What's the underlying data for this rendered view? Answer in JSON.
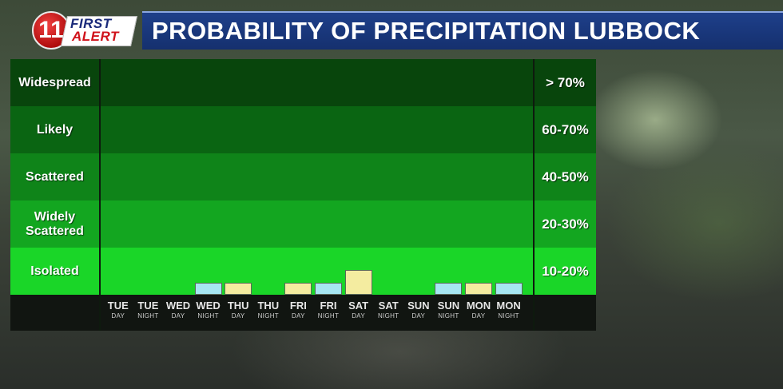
{
  "header": {
    "logo_number": "11",
    "logo_first": "FIRST",
    "logo_alert": "ALERT",
    "title": "PROBABILITY OF PRECIPITATION LUBBOCK"
  },
  "colors": {
    "band_widespread": "#08450c",
    "band_likely": "#0a6512",
    "band_scattered": "#0f8419",
    "band_widely_scattered": "#13a620",
    "band_isolated": "#1ad628",
    "bar_night": "#a6e6f2",
    "bar_day": "#f4eca0"
  },
  "chart_data": {
    "type": "bar",
    "title": "PROBABILITY OF PRECIPITATION LUBBOCK",
    "levels": [
      {
        "label": "Widespread",
        "range": "> 70%"
      },
      {
        "label": "Likely",
        "range": "60-70%"
      },
      {
        "label": "Scattered",
        "range": "40-50%"
      },
      {
        "label": "Widely Scattered",
        "range": "20-30%"
      },
      {
        "label": "Isolated",
        "range": "10-20%"
      }
    ],
    "categories": [
      {
        "day": "TUE",
        "part": "DAY"
      },
      {
        "day": "TUE",
        "part": "NIGHT"
      },
      {
        "day": "WED",
        "part": "DAY"
      },
      {
        "day": "WED",
        "part": "NIGHT"
      },
      {
        "day": "THU",
        "part": "DAY"
      },
      {
        "day": "THU",
        "part": "NIGHT"
      },
      {
        "day": "FRI",
        "part": "DAY"
      },
      {
        "day": "FRI",
        "part": "NIGHT"
      },
      {
        "day": "SAT",
        "part": "DAY"
      },
      {
        "day": "SAT",
        "part": "NIGHT"
      },
      {
        "day": "SUN",
        "part": "DAY"
      },
      {
        "day": "SUN",
        "part": "NIGHT"
      },
      {
        "day": "MON",
        "part": "DAY"
      },
      {
        "day": "MON",
        "part": "NIGHT"
      }
    ],
    "values": [
      0,
      0,
      0,
      1,
      1,
      0,
      1,
      1,
      2,
      0,
      0,
      1,
      1,
      1
    ],
    "value_unit": "fraction of Isolated (10-20%) band, 0-10 scale",
    "ylim": [
      0,
      10
    ],
    "grid": false,
    "legend": "none"
  }
}
